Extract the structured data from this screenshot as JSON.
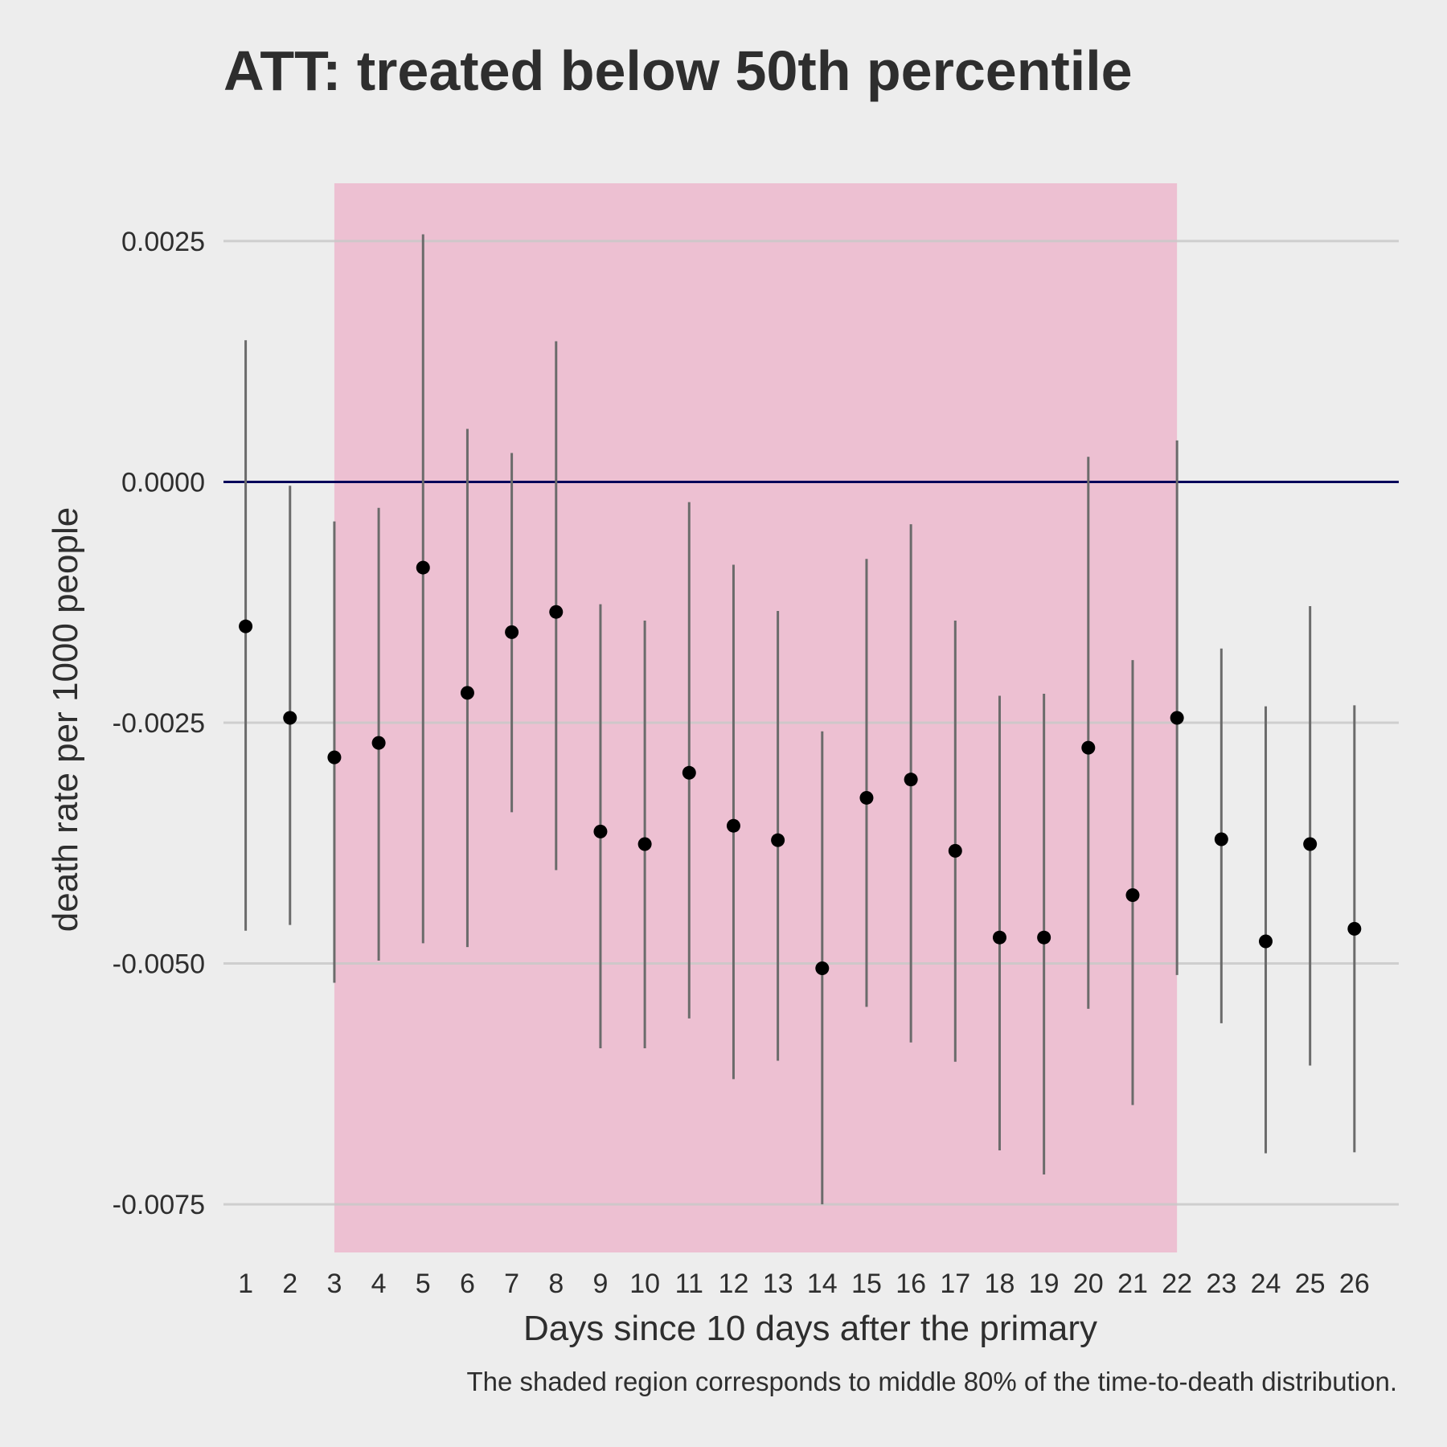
{
  "chart_data": {
    "type": "scatter",
    "title": "ATT: treated below 50th percentile",
    "xlabel": "Days since 10 days after the primary",
    "ylabel": "death rate per 1000 people",
    "caption": "The shaded region corresponds to middle 80% of the time-to-death distribution.",
    "x": [
      1,
      2,
      3,
      4,
      5,
      6,
      7,
      8,
      9,
      10,
      11,
      12,
      13,
      14,
      15,
      16,
      17,
      18,
      19,
      20,
      21,
      22,
      23,
      24,
      25,
      26
    ],
    "x_tick_labels": [
      "1",
      "2",
      "3",
      "4",
      "5",
      "6",
      "7",
      "8",
      "9",
      "10",
      "11",
      "12",
      "13",
      "14",
      "15",
      "16",
      "17",
      "18",
      "19",
      "20",
      "21",
      "22",
      "23",
      "24",
      "25",
      "26"
    ],
    "y": [
      -0.0015,
      -0.00245,
      -0.00286,
      -0.00271,
      -0.00089,
      -0.00219,
      -0.00156,
      -0.00135,
      -0.00363,
      -0.00376,
      -0.00302,
      -0.00357,
      -0.00372,
      -0.00505,
      -0.00328,
      -0.00309,
      -0.00383,
      -0.00473,
      -0.00473,
      -0.00276,
      -0.00429,
      -0.00245,
      -0.00371,
      -0.00477,
      -0.00376,
      -0.00464
    ],
    "ci_low": [
      -0.00466,
      -0.0046,
      -0.0052,
      -0.00497,
      -0.00479,
      -0.00483,
      -0.00343,
      -0.00403,
      -0.00588,
      -0.00588,
      -0.00557,
      -0.0062,
      -0.00601,
      -0.0075,
      -0.00545,
      -0.00582,
      -0.00602,
      -0.00694,
      -0.00719,
      -0.00547,
      -0.00647,
      -0.00512,
      -0.00562,
      -0.00697,
      -0.00606,
      -0.00696
    ],
    "ci_high": [
      0.00147,
      -4e-05,
      -0.00041,
      -0.00027,
      0.00257,
      0.00055,
      0.0003,
      0.00146,
      -0.00127,
      -0.00144,
      -0.00021,
      -0.00086,
      -0.00134,
      -0.00259,
      -0.0008,
      -0.00044,
      -0.00144,
      -0.00222,
      -0.0022,
      0.00026,
      -0.00185,
      0.00043,
      -0.00173,
      -0.00233,
      -0.00129,
      -0.00232
    ],
    "y_ticks": [
      0.0025,
      0.0,
      -0.0025,
      -0.005,
      -0.0075
    ],
    "y_tick_labels": [
      "0.0025",
      "0.0000",
      "-0.0025",
      "-0.0050",
      "-0.0075"
    ],
    "ylim": [
      -0.008,
      0.0031
    ],
    "xlim": [
      0.5,
      27.0
    ],
    "reference_line_y": 0.0,
    "shaded_region": [
      3,
      22
    ],
    "grid": true,
    "colors": {
      "background": "#ededed",
      "shade": "#edc0d2",
      "grid": "#c8c8c8",
      "reference_line": "#00005a",
      "error_bar": "#6b6b6b",
      "point": "#000000",
      "text": "#2e2e2e"
    }
  }
}
